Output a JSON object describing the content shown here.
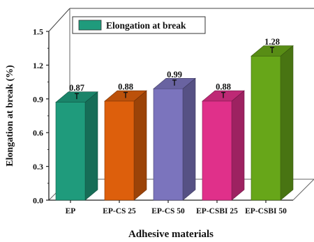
{
  "chart_data": {
    "type": "bar",
    "title": "",
    "xlabel": "Adhesive materials",
    "ylabel": "Elongation at break (%)",
    "ylim": [
      0,
      1.5
    ],
    "yticks": [
      "0.0",
      "0.3",
      "0.6",
      "0.9",
      "1.2",
      "1.5"
    ],
    "categories": [
      "EP",
      "EP-CS 25",
      "EP-CS 50",
      "EP-CSBI 25",
      "EP-CSBI 50"
    ],
    "series": [
      {
        "name": "Elongation at break",
        "values": [
          0.87,
          0.88,
          0.99,
          0.88,
          1.28
        ],
        "value_labels": [
          "0.87",
          "0.88",
          "0.99",
          "0.88",
          "1.28"
        ],
        "colors": [
          "#1f9b7c",
          "#dd5f0c",
          "#7b74bd",
          "#e0308a",
          "#67a619"
        ]
      }
    ],
    "legend": {
      "position": "top-left",
      "label": "Elongation at break",
      "color": "#1f9b7c"
    },
    "error_bars": true,
    "style": "3d-box"
  }
}
